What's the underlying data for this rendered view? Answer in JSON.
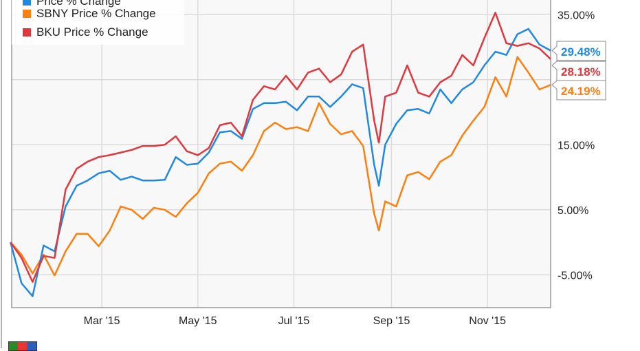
{
  "chart_data": {
    "type": "line",
    "title": "",
    "xlabel": "",
    "ylabel": "",
    "x": [
      "2015-01-02",
      "2015-01-09",
      "2015-01-16",
      "2015-01-23",
      "2015-01-30",
      "2015-02-06",
      "2015-02-13",
      "2015-02-20",
      "2015-02-27",
      "2015-03-06",
      "2015-03-13",
      "2015-03-20",
      "2015-03-27",
      "2015-04-03",
      "2015-04-10",
      "2015-04-17",
      "2015-04-24",
      "2015-05-01",
      "2015-05-08",
      "2015-05-15",
      "2015-05-22",
      "2015-05-29",
      "2015-06-05",
      "2015-06-12",
      "2015-06-19",
      "2015-06-26",
      "2015-07-03",
      "2015-07-10",
      "2015-07-17",
      "2015-07-24",
      "2015-07-31",
      "2015-08-07",
      "2015-08-14",
      "2015-08-21",
      "2015-08-24",
      "2015-08-28",
      "2015-09-04",
      "2015-09-11",
      "2015-09-18",
      "2015-09-25",
      "2015-10-02",
      "2015-10-09",
      "2015-10-16",
      "2015-10-23",
      "2015-10-30",
      "2015-11-06",
      "2015-11-13",
      "2015-11-20",
      "2015-11-27",
      "2015-12-04",
      "2015-12-11"
    ],
    "series": [
      {
        "name": "Price % Change",
        "color": "#1f88e5",
        "end_label": "29.48%",
        "values": [
          0.0,
          -6.3,
          -8.3,
          -0.5,
          -1.4,
          5.5,
          8.7,
          9.5,
          10.6,
          11.0,
          9.6,
          10.1,
          9.5,
          9.5,
          9.6,
          13.1,
          11.9,
          12.1,
          13.8,
          16.9,
          17.1,
          15.9,
          20.5,
          21.4,
          21.4,
          21.6,
          20.3,
          22.4,
          22.4,
          20.8,
          22.4,
          24.3,
          23.7,
          11.9,
          8.7,
          15.0,
          18.2,
          20.3,
          20.5,
          19.8,
          23.5,
          21.4,
          23.5,
          24.6,
          27.2,
          29.3,
          28.8,
          32.0,
          32.8,
          30.4,
          29.48
        ]
      },
      {
        "name": "SBNY Price % Change",
        "color": "#ff7f0e",
        "end_label": "24.19%",
        "values": [
          0.0,
          -1.9,
          -4.8,
          -1.9,
          -5.1,
          -1.4,
          1.3,
          1.3,
          -0.6,
          1.8,
          5.5,
          5.0,
          3.6,
          5.3,
          5.0,
          3.9,
          6.0,
          7.6,
          10.6,
          12.1,
          12.4,
          11.0,
          13.4,
          17.1,
          18.4,
          17.4,
          17.7,
          17.1,
          21.4,
          18.2,
          16.6,
          17.1,
          14.8,
          4.4,
          1.8,
          6.3,
          5.5,
          10.3,
          10.8,
          9.7,
          12.4,
          13.4,
          16.4,
          18.7,
          20.8,
          25.4,
          22.4,
          28.5,
          26.1,
          23.5,
          24.19
        ]
      },
      {
        "name": "BKU Price % Change",
        "color": "#e0383e",
        "end_label": "28.18%",
        "values": [
          0.0,
          -2.4,
          -6.1,
          -2.1,
          -2.4,
          8.1,
          11.3,
          12.4,
          13.1,
          13.4,
          13.8,
          14.2,
          14.8,
          14.8,
          15.0,
          16.3,
          14.0,
          13.4,
          14.5,
          18.0,
          18.4,
          16.3,
          21.9,
          24.0,
          23.5,
          25.6,
          23.5,
          26.1,
          26.7,
          24.6,
          25.8,
          29.3,
          30.4,
          18.7,
          15.3,
          22.4,
          23.0,
          27.2,
          23.0,
          22.4,
          24.6,
          25.6,
          28.8,
          27.2,
          31.4,
          35.3,
          30.6,
          30.2,
          30.6,
          29.8,
          28.18
        ]
      }
    ],
    "ylim": [
      -10,
      37
    ],
    "y_ticks": [
      35,
      25,
      15,
      5,
      -5
    ],
    "y_tick_labels": [
      "35.00%",
      "",
      "15.00%",
      "5.00%",
      "-5.00%"
    ],
    "x_ticks": [
      "2015-03-01",
      "2015-05-01",
      "2015-07-01",
      "2015-09-01",
      "2015-11-01"
    ],
    "x_tick_labels": [
      "Mar '15",
      "May '15",
      "Jul '15",
      "Sep '15",
      "Nov '15"
    ],
    "xlim": [
      "2015-01-01",
      "2015-12-13"
    ],
    "grid": true,
    "y_axis_side": "right",
    "legend_position": "top-left"
  }
}
